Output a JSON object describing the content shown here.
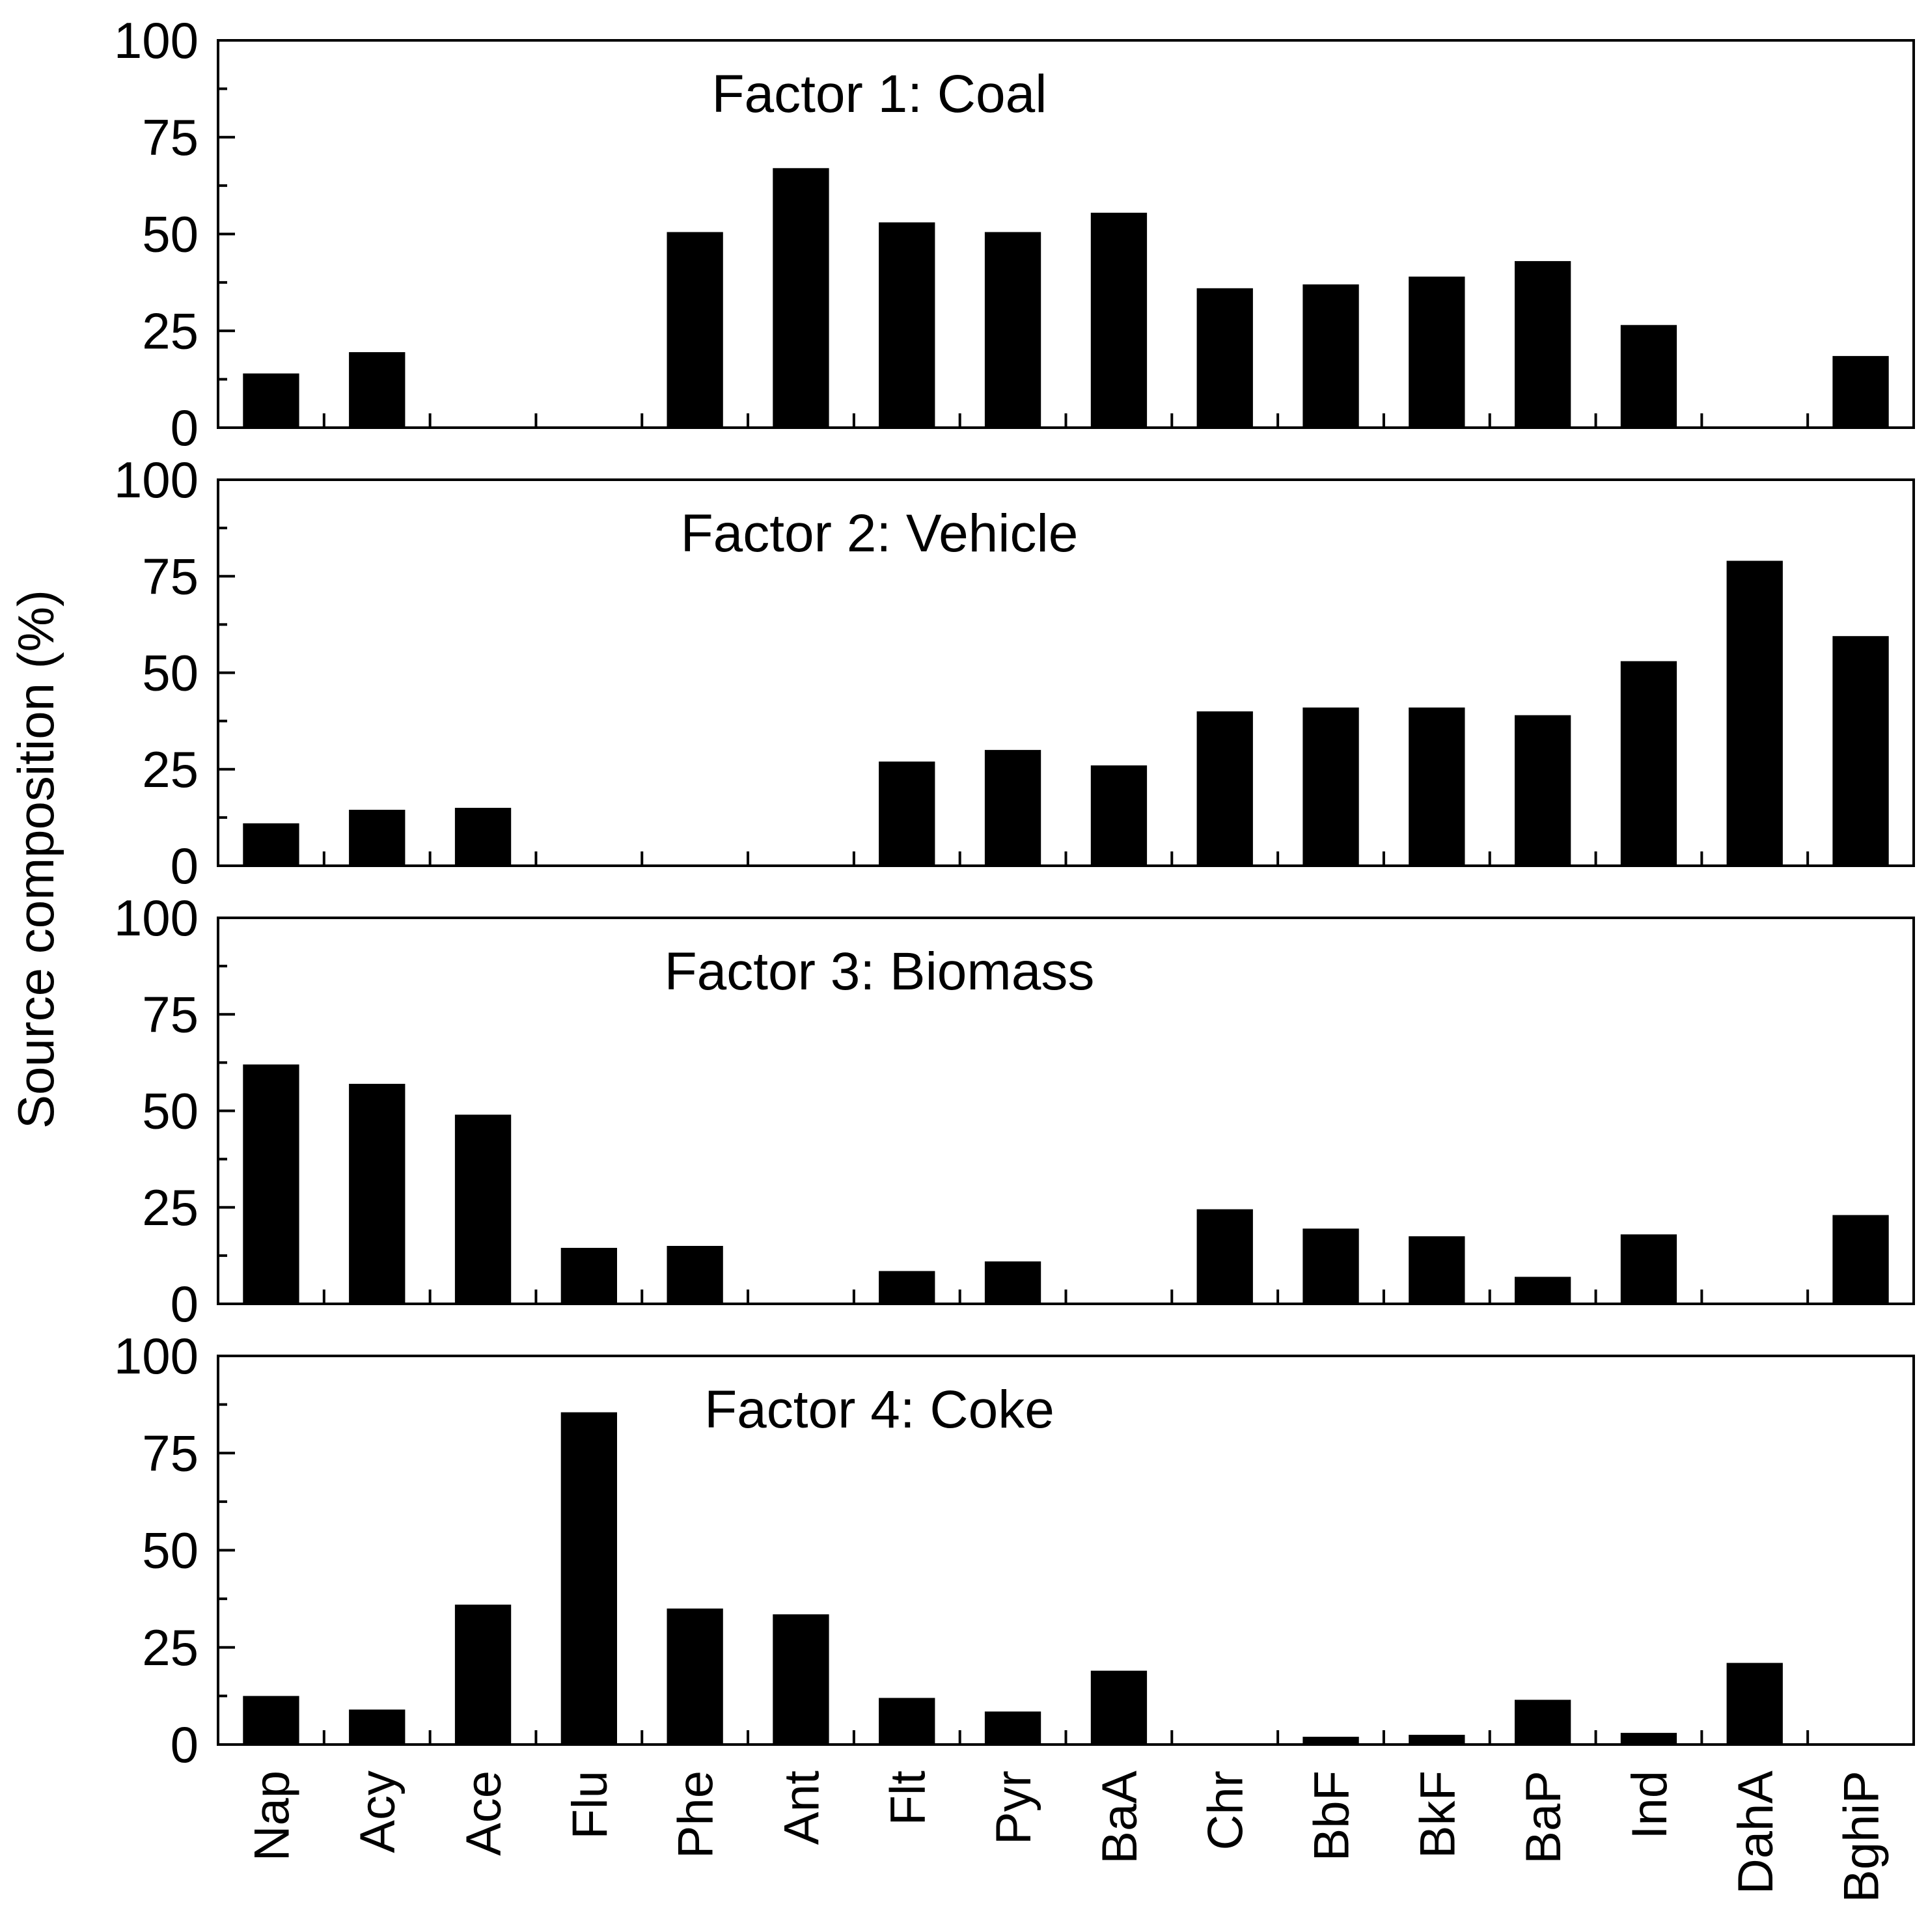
{
  "y_axis_title": "Source composition (%)",
  "categories": [
    "Nap",
    "Acy",
    "Ace",
    "Flu",
    "Phe",
    "Ant",
    "Flt",
    "Pyr",
    "BaA",
    "Chr",
    "BbF",
    "BkF",
    "BaP",
    "Ind",
    "DahA",
    "BghiP"
  ],
  "y_ticks": [
    "100",
    "75",
    "50",
    "25",
    "0"
  ],
  "colors": {
    "bar": "#000000",
    "frame": "#000000",
    "background": "#ffffff"
  },
  "chart_data": [
    {
      "type": "bar",
      "title": "Factor 1: Coal",
      "ylabel": "Source composition (%)",
      "ylim": [
        0,
        100
      ],
      "categories": [
        "Nap",
        "Acy",
        "Ace",
        "Flu",
        "Phe",
        "Ant",
        "Flt",
        "Pyr",
        "BaA",
        "Chr",
        "BbF",
        "BkF",
        "BaP",
        "Ind",
        "DahA",
        "BghiP"
      ],
      "values": [
        14,
        19.5,
        0,
        0,
        50.5,
        67,
        53,
        50.5,
        55.5,
        36,
        37,
        39,
        43,
        26.5,
        0,
        18.5
      ]
    },
    {
      "type": "bar",
      "title": "Factor 2: Vehicle",
      "ylabel": "Source composition (%)",
      "ylim": [
        0,
        100
      ],
      "categories": [
        "Nap",
        "Acy",
        "Ace",
        "Flu",
        "Phe",
        "Ant",
        "Flt",
        "Pyr",
        "BaA",
        "Chr",
        "BbF",
        "BkF",
        "BaP",
        "Ind",
        "DahA",
        "BghiP"
      ],
      "values": [
        11,
        14.5,
        15,
        0,
        0,
        0,
        27,
        30,
        26,
        40,
        41,
        41,
        39,
        53,
        79,
        59.5
      ]
    },
    {
      "type": "bar",
      "title": "Factor 3: Biomass",
      "ylabel": "Source composition (%)",
      "ylim": [
        0,
        100
      ],
      "categories": [
        "Nap",
        "Acy",
        "Ace",
        "Flu",
        "Phe",
        "Ant",
        "Flt",
        "Pyr",
        "BaA",
        "Chr",
        "BbF",
        "BkF",
        "BaP",
        "Ind",
        "DahA",
        "BghiP"
      ],
      "values": [
        62,
        57,
        49,
        14.5,
        15,
        0,
        8.5,
        11,
        0,
        24.5,
        19.5,
        17.5,
        7,
        18,
        0,
        23
      ]
    },
    {
      "type": "bar",
      "title": "Factor 4: Coke",
      "ylabel": "Source composition (%)",
      "xlabel": "",
      "ylim": [
        0,
        100
      ],
      "categories": [
        "Nap",
        "Acy",
        "Ace",
        "Flu",
        "Phe",
        "Ant",
        "Flt",
        "Pyr",
        "BaA",
        "Chr",
        "BbF",
        "BkF",
        "BaP",
        "Ind",
        "DahA",
        "BghiP"
      ],
      "values": [
        12.5,
        9,
        36,
        85.5,
        35,
        33.5,
        12,
        8.5,
        19,
        0,
        2,
        2.5,
        11.5,
        3,
        21,
        0
      ]
    }
  ]
}
